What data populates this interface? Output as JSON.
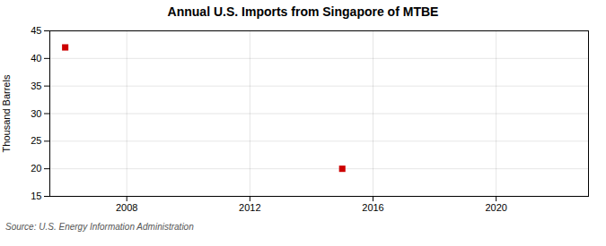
{
  "chart_data": {
    "type": "scatter",
    "title": "Annual U.S. Imports from Singapore of MTBE",
    "ylabel": "Thousand Barrels",
    "source": "Source: U.S. Energy Information Administration",
    "x": [
      2006,
      2015
    ],
    "values": [
      42,
      20
    ],
    "color": "#cc0000",
    "marker": "square",
    "xlim": [
      2005.5,
      2023
    ],
    "xticks": [
      2008,
      2012,
      2016,
      2020
    ],
    "ylim": [
      15,
      45
    ],
    "yticks": [
      15,
      20,
      25,
      30,
      35,
      40,
      45
    ],
    "grid": true
  }
}
